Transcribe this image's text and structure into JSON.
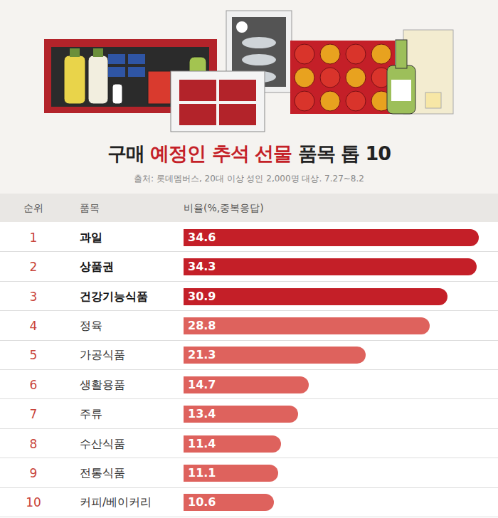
{
  "chart_data": {
    "type": "bar",
    "orientation": "horizontal",
    "title": "구매 예정인 추석 선물 품목 톱 10",
    "subtitle": "출처: 롯데멤버스, 20대 이상 성인 2,000명 대상. 7.27~8.2",
    "column_headers": [
      "순위",
      "품목",
      "비율(%,중복응답)"
    ],
    "ranks": [
      1,
      2,
      3,
      4,
      5,
      6,
      7,
      8,
      9,
      10
    ],
    "categories": [
      "과일",
      "상품권",
      "건강기능식품",
      "정육",
      "가공식품",
      "생활용품",
      "주류",
      "수산식품",
      "전통식품",
      "커피/베이커리"
    ],
    "values": [
      34.6,
      34.3,
      30.9,
      28.8,
      21.3,
      14.7,
      13.4,
      11.4,
      11.1,
      10.6
    ],
    "colors": [
      "#c41f28",
      "#c41f28",
      "#c41f28",
      "#de625d",
      "#de625d",
      "#de625d",
      "#de625d",
      "#de625d",
      "#de625d",
      "#de625d"
    ],
    "xlim": [
      0,
      36
    ],
    "data_labels": true,
    "tick_labels": false
  }
}
